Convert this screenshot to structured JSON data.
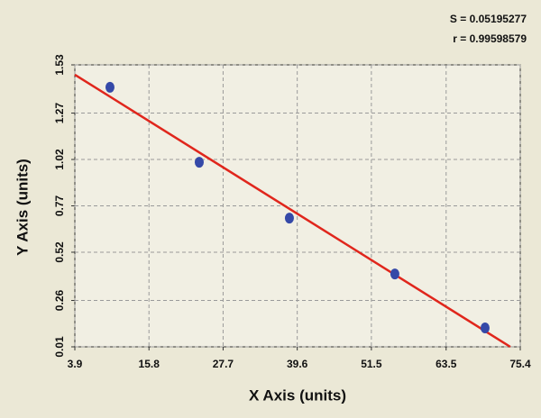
{
  "chart_data": {
    "type": "scatter",
    "annotations": [
      "S = 0.05195277",
      "r = 0.99598579"
    ],
    "x_label": "X Axis (units)",
    "y_label": "Y Axis (units)",
    "series": [
      {
        "x": [
          9.54,
          23.87,
          38.34,
          55.27,
          69.75
        ],
        "values": [
          1.409,
          1.005,
          0.704,
          0.403,
          0.112
        ],
        "color": "#3549a8"
      }
    ],
    "fit_line": {
      "x": [
        3.9,
        73.8
      ],
      "values": [
        1.477,
        0.01
      ],
      "color": "#e0261c"
    },
    "xlim": [
      3.9,
      75.4
    ],
    "ylim": [
      0.01,
      1.53
    ],
    "xticks": [
      3.9,
      15.8,
      27.7,
      39.6,
      51.5,
      63.5,
      75.4
    ],
    "yticks": [
      0.01,
      0.26,
      0.52,
      0.77,
      1.02,
      1.27,
      1.53
    ],
    "grid": true
  }
}
